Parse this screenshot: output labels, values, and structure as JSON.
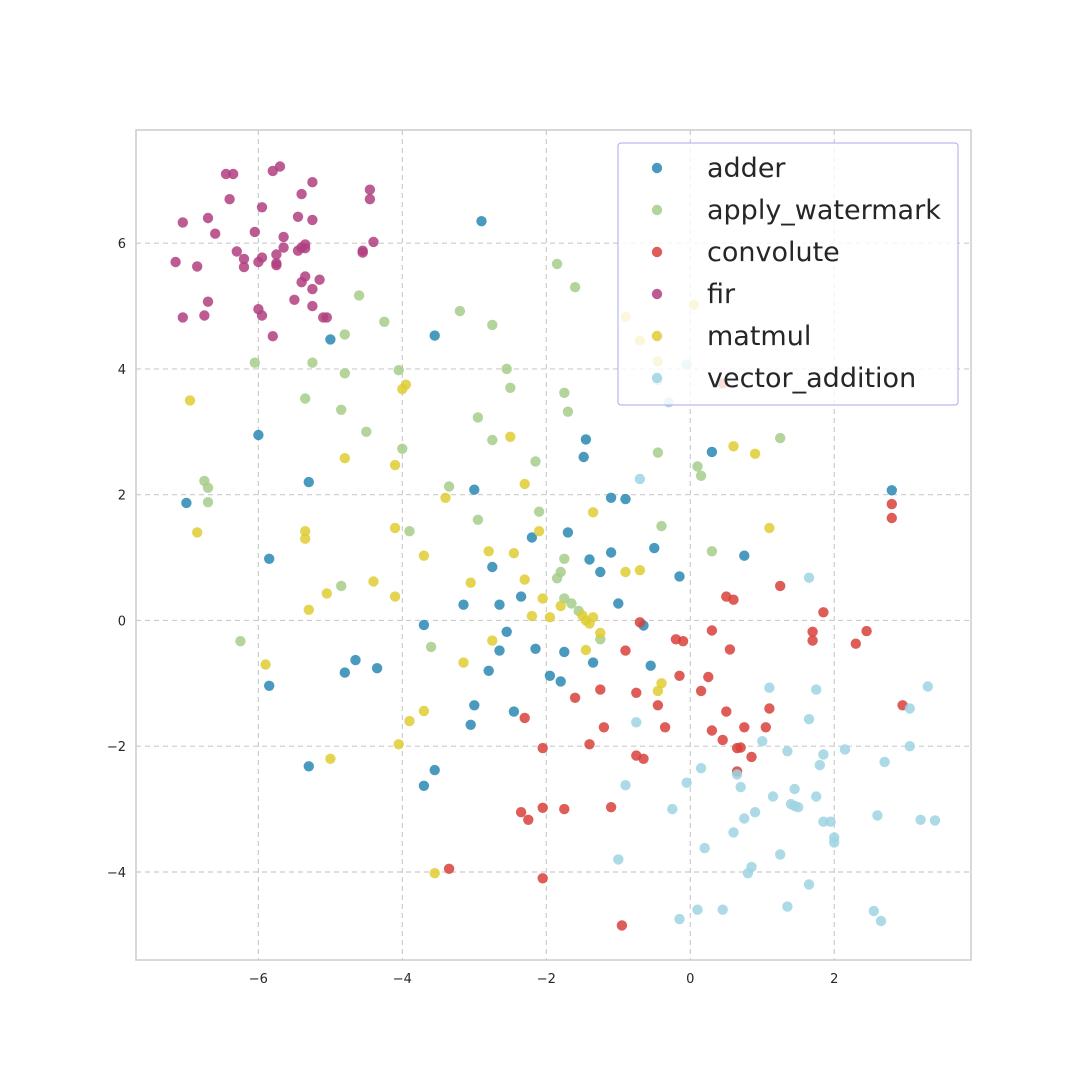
{
  "chart_data": {
    "type": "scatter",
    "title": "",
    "xlabel": "",
    "ylabel": "",
    "xlim": [
      -7.7,
      3.9
    ],
    "ylim": [
      -5.4,
      7.8
    ],
    "xticks": [
      -6,
      -4,
      -2,
      0,
      2
    ],
    "yticks": [
      -4,
      -2,
      0,
      2,
      4,
      6
    ],
    "xtick_labels": [
      "−6",
      "−4",
      "−2",
      "0",
      "2"
    ],
    "ytick_labels": [
      "−4",
      "−2",
      "0",
      "2",
      "4",
      "6"
    ],
    "grid": true,
    "legend_position": "top-right",
    "series": [
      {
        "name": "adder",
        "color": "#2a88b4",
        "points": [
          [
            -2.9,
            6.35
          ],
          [
            -5.0,
            4.47
          ],
          [
            -3.55,
            4.53
          ],
          [
            -6.0,
            2.95
          ],
          [
            -7.0,
            1.87
          ],
          [
            -5.3,
            2.2
          ],
          [
            -3.0,
            2.08
          ],
          [
            -1.45,
            2.88
          ],
          [
            -1.48,
            2.6
          ],
          [
            -1.1,
            1.95
          ],
          [
            -0.9,
            1.93
          ],
          [
            0.3,
            2.68
          ],
          [
            2.8,
            2.07
          ],
          [
            -5.85,
            0.98
          ],
          [
            -2.2,
            1.32
          ],
          [
            -1.7,
            1.4
          ],
          [
            -1.4,
            0.97
          ],
          [
            -1.25,
            0.77
          ],
          [
            -1.1,
            1.08
          ],
          [
            -0.5,
            1.15
          ],
          [
            -0.15,
            0.7
          ],
          [
            0.75,
            1.03
          ],
          [
            -2.75,
            0.85
          ],
          [
            -3.15,
            0.25
          ],
          [
            -2.65,
            0.25
          ],
          [
            -2.35,
            0.38
          ],
          [
            -1.0,
            0.27
          ],
          [
            -5.85,
            -1.04
          ],
          [
            -4.65,
            -0.63
          ],
          [
            -4.8,
            -0.83
          ],
          [
            -4.35,
            -0.76
          ],
          [
            -3.7,
            -0.07
          ],
          [
            -2.55,
            -0.18
          ],
          [
            -2.65,
            -0.48
          ],
          [
            -2.8,
            -0.8
          ],
          [
            -2.15,
            -0.45
          ],
          [
            -1.95,
            -0.88
          ],
          [
            -1.75,
            -0.5
          ],
          [
            -1.35,
            -0.67
          ],
          [
            -0.65,
            -0.08
          ],
          [
            -0.55,
            -0.72
          ],
          [
            -1.8,
            -0.97
          ],
          [
            -3.0,
            -1.35
          ],
          [
            -3.05,
            -1.66
          ],
          [
            -2.45,
            -1.45
          ],
          [
            -5.3,
            -2.32
          ],
          [
            -3.55,
            -2.38
          ],
          [
            -3.7,
            -2.63
          ]
        ]
      },
      {
        "name": "apply_watermark",
        "color": "#a6cc8a",
        "points": [
          [
            -1.85,
            5.67
          ],
          [
            -1.6,
            5.3
          ],
          [
            -4.6,
            5.17
          ],
          [
            -3.2,
            4.92
          ],
          [
            -2.75,
            4.7
          ],
          [
            -4.25,
            4.75
          ],
          [
            -4.8,
            4.55
          ],
          [
            -6.05,
            4.1
          ],
          [
            -5.25,
            4.1
          ],
          [
            -4.8,
            3.93
          ],
          [
            -4.05,
            3.98
          ],
          [
            -2.55,
            4.0
          ],
          [
            -2.5,
            3.7
          ],
          [
            -1.75,
            3.62
          ],
          [
            -5.35,
            3.53
          ],
          [
            -4.85,
            3.35
          ],
          [
            -1.7,
            3.32
          ],
          [
            -2.95,
            3.23
          ],
          [
            -4.5,
            3.0
          ],
          [
            -2.75,
            2.87
          ],
          [
            -4.0,
            2.73
          ],
          [
            -0.45,
            2.67
          ],
          [
            1.25,
            2.9
          ],
          [
            -6.75,
            2.22
          ],
          [
            -6.7,
            2.11
          ],
          [
            -3.35,
            2.13
          ],
          [
            -2.15,
            2.53
          ],
          [
            0.1,
            2.45
          ],
          [
            0.15,
            2.3
          ],
          [
            -6.7,
            1.88
          ],
          [
            -2.95,
            1.6
          ],
          [
            -2.1,
            1.73
          ],
          [
            -0.4,
            1.5
          ],
          [
            -3.9,
            1.42
          ],
          [
            -1.75,
            0.98
          ],
          [
            0.3,
            1.1
          ],
          [
            -1.8,
            0.77
          ],
          [
            -1.85,
            0.67
          ],
          [
            -4.85,
            0.55
          ],
          [
            -1.75,
            0.35
          ],
          [
            -1.65,
            0.27
          ],
          [
            -1.55,
            0.15
          ],
          [
            -1.25,
            -0.3
          ],
          [
            -6.25,
            -0.33
          ],
          [
            -3.6,
            -0.42
          ]
        ]
      },
      {
        "name": "convolute",
        "color": "#d8413b",
        "points": [
          [
            0.45,
            3.77
          ],
          [
            2.8,
            1.85
          ],
          [
            2.8,
            1.63
          ],
          [
            1.25,
            0.55
          ],
          [
            0.5,
            0.38
          ],
          [
            0.6,
            0.33
          ],
          [
            1.85,
            0.13
          ],
          [
            -0.7,
            -0.03
          ],
          [
            0.3,
            -0.16
          ],
          [
            1.7,
            -0.18
          ],
          [
            2.45,
            -0.17
          ],
          [
            -0.2,
            -0.3
          ],
          [
            -0.1,
            -0.33
          ],
          [
            1.7,
            -0.32
          ],
          [
            2.3,
            -0.37
          ],
          [
            -0.9,
            -0.48
          ],
          [
            0.55,
            -0.46
          ],
          [
            -0.15,
            -0.88
          ],
          [
            0.25,
            -0.9
          ],
          [
            -1.25,
            -1.1
          ],
          [
            -0.75,
            -1.15
          ],
          [
            0.15,
            -1.12
          ],
          [
            -1.6,
            -1.23
          ],
          [
            -0.45,
            -1.35
          ],
          [
            0.5,
            -1.45
          ],
          [
            1.1,
            -1.4
          ],
          [
            2.95,
            -1.35
          ],
          [
            -2.3,
            -1.55
          ],
          [
            -1.2,
            -1.7
          ],
          [
            -0.35,
            -1.7
          ],
          [
            0.3,
            -1.75
          ],
          [
            0.75,
            -1.7
          ],
          [
            1.05,
            -1.7
          ],
          [
            0.45,
            -1.9
          ],
          [
            -1.4,
            -1.97
          ],
          [
            -2.05,
            -2.03
          ],
          [
            0.65,
            -2.03
          ],
          [
            0.7,
            -2.02
          ],
          [
            -0.75,
            -2.15
          ],
          [
            -0.65,
            -2.2
          ],
          [
            0.85,
            -2.17
          ],
          [
            0.65,
            -2.4
          ],
          [
            -2.35,
            -3.05
          ],
          [
            -2.25,
            -3.17
          ],
          [
            -2.05,
            -2.98
          ],
          [
            -1.75,
            -3.0
          ],
          [
            -1.1,
            -2.97
          ],
          [
            -3.35,
            -3.95
          ],
          [
            -2.05,
            -4.1
          ],
          [
            -0.95,
            -4.85
          ]
        ]
      },
      {
        "name": "fir",
        "color": "#b03f80",
        "points": [
          [
            -5.7,
            7.22
          ],
          [
            -5.8,
            7.15
          ],
          [
            -6.45,
            7.1
          ],
          [
            -6.35,
            7.1
          ],
          [
            -5.25,
            6.97
          ],
          [
            -4.45,
            6.85
          ],
          [
            -5.4,
            6.78
          ],
          [
            -6.4,
            6.7
          ],
          [
            -4.45,
            6.7
          ],
          [
            -5.95,
            6.57
          ],
          [
            -5.45,
            6.42
          ],
          [
            -5.25,
            6.37
          ],
          [
            -6.7,
            6.4
          ],
          [
            -7.05,
            6.33
          ],
          [
            -6.05,
            6.18
          ],
          [
            -6.6,
            6.15
          ],
          [
            -5.65,
            6.1
          ],
          [
            -4.4,
            6.02
          ],
          [
            -5.35,
            5.98
          ],
          [
            -5.4,
            5.93
          ],
          [
            -5.45,
            5.88
          ],
          [
            -5.35,
            5.92
          ],
          [
            -5.65,
            5.93
          ],
          [
            -6.3,
            5.87
          ],
          [
            -4.55,
            5.88
          ],
          [
            -4.55,
            5.85
          ],
          [
            -5.75,
            5.82
          ],
          [
            -5.95,
            5.77
          ],
          [
            -6.2,
            5.75
          ],
          [
            -6.0,
            5.7
          ],
          [
            -5.75,
            5.68
          ],
          [
            -5.75,
            5.65
          ],
          [
            -7.15,
            5.7
          ],
          [
            -6.2,
            5.62
          ],
          [
            -6.85,
            5.63
          ],
          [
            -5.35,
            5.47
          ],
          [
            -5.15,
            5.42
          ],
          [
            -5.4,
            5.38
          ],
          [
            -5.25,
            5.27
          ],
          [
            -5.5,
            5.1
          ],
          [
            -6.7,
            5.07
          ],
          [
            -5.25,
            5.0
          ],
          [
            -6.0,
            4.95
          ],
          [
            -5.95,
            4.85
          ],
          [
            -5.1,
            4.82
          ],
          [
            -5.05,
            4.82
          ],
          [
            -6.75,
            4.85
          ],
          [
            -7.05,
            4.82
          ],
          [
            -5.8,
            4.52
          ]
        ]
      },
      {
        "name": "matmul",
        "color": "#dfcc34",
        "points": [
          [
            -0.9,
            4.83
          ],
          [
            0.05,
            5.02
          ],
          [
            -0.7,
            4.45
          ],
          [
            -0.45,
            4.12
          ],
          [
            -3.95,
            3.75
          ],
          [
            -4.0,
            3.68
          ],
          [
            -6.95,
            3.5
          ],
          [
            -2.5,
            2.92
          ],
          [
            0.6,
            2.77
          ],
          [
            0.9,
            2.65
          ],
          [
            -4.8,
            2.58
          ],
          [
            -4.1,
            2.47
          ],
          [
            -2.3,
            2.17
          ],
          [
            -3.4,
            1.95
          ],
          [
            -1.35,
            1.72
          ],
          [
            1.1,
            1.47
          ],
          [
            -6.85,
            1.4
          ],
          [
            -5.35,
            1.42
          ],
          [
            -5.35,
            1.3
          ],
          [
            -4.1,
            1.47
          ],
          [
            -2.1,
            1.42
          ],
          [
            -3.7,
            1.03
          ],
          [
            -2.8,
            1.1
          ],
          [
            -2.45,
            1.07
          ],
          [
            -0.9,
            0.77
          ],
          [
            -0.7,
            0.8
          ],
          [
            -4.4,
            0.62
          ],
          [
            -3.05,
            0.6
          ],
          [
            -2.3,
            0.65
          ],
          [
            -5.05,
            0.43
          ],
          [
            -4.1,
            0.38
          ],
          [
            -2.05,
            0.35
          ],
          [
            -5.3,
            0.17
          ],
          [
            -2.2,
            0.07
          ],
          [
            -1.95,
            0.05
          ],
          [
            -1.8,
            0.23
          ],
          [
            -1.5,
            0.08
          ],
          [
            -1.45,
            0.0
          ],
          [
            -1.4,
            -0.05
          ],
          [
            -1.35,
            0.05
          ],
          [
            -2.75,
            -0.32
          ],
          [
            -1.25,
            -0.2
          ],
          [
            -1.45,
            -0.47
          ],
          [
            -5.9,
            -0.7
          ],
          [
            -3.15,
            -0.67
          ],
          [
            -0.4,
            -1.0
          ],
          [
            -0.45,
            -1.12
          ],
          [
            -3.9,
            -1.6
          ],
          [
            -3.7,
            -1.44
          ],
          [
            -4.05,
            -1.97
          ],
          [
            -5.0,
            -2.2
          ],
          [
            -3.55,
            -4.02
          ]
        ]
      },
      {
        "name": "vector_addition",
        "color": "#9dd3e2",
        "points": [
          [
            -0.05,
            4.07
          ],
          [
            -0.45,
            3.82
          ],
          [
            -0.3,
            3.47
          ],
          [
            -0.7,
            2.25
          ],
          [
            1.65,
            0.68
          ],
          [
            1.1,
            -1.07
          ],
          [
            1.75,
            -1.1
          ],
          [
            3.3,
            -1.05
          ],
          [
            1.65,
            -1.57
          ],
          [
            -0.75,
            -1.62
          ],
          [
            3.05,
            -1.4
          ],
          [
            1.0,
            -1.92
          ],
          [
            1.35,
            -2.08
          ],
          [
            1.85,
            -2.13
          ],
          [
            2.15,
            -2.05
          ],
          [
            3.05,
            -2.0
          ],
          [
            0.15,
            -2.35
          ],
          [
            1.8,
            -2.3
          ],
          [
            2.7,
            -2.25
          ],
          [
            0.65,
            -2.45
          ],
          [
            -0.05,
            -2.58
          ],
          [
            -0.9,
            -2.62
          ],
          [
            0.7,
            -2.65
          ],
          [
            1.45,
            -2.68
          ],
          [
            1.15,
            -2.8
          ],
          [
            1.75,
            -2.8
          ],
          [
            1.4,
            -2.92
          ],
          [
            1.45,
            -2.95
          ],
          [
            1.5,
            -2.97
          ],
          [
            0.9,
            -3.05
          ],
          [
            -0.25,
            -3.0
          ],
          [
            0.75,
            -3.15
          ],
          [
            1.85,
            -3.2
          ],
          [
            1.95,
            -3.2
          ],
          [
            2.6,
            -3.1
          ],
          [
            3.2,
            -3.17
          ],
          [
            3.4,
            -3.18
          ],
          [
            0.6,
            -3.37
          ],
          [
            2.0,
            -3.45
          ],
          [
            2.0,
            -3.53
          ],
          [
            0.2,
            -3.62
          ],
          [
            1.25,
            -3.72
          ],
          [
            -1.0,
            -3.8
          ],
          [
            0.85,
            -3.92
          ],
          [
            0.8,
            -4.02
          ],
          [
            1.65,
            -4.2
          ],
          [
            1.35,
            -4.55
          ],
          [
            0.1,
            -4.6
          ],
          [
            0.45,
            -4.6
          ],
          [
            2.55,
            -4.62
          ],
          [
            -0.15,
            -4.75
          ],
          [
            2.65,
            -4.78
          ]
        ]
      }
    ]
  }
}
